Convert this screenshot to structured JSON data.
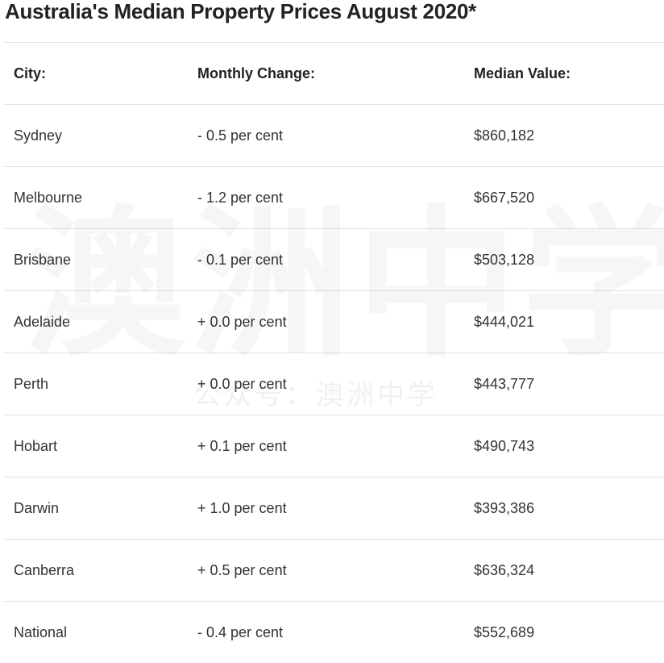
{
  "header": {
    "title": "Australia's Median Property Prices August 2020*"
  },
  "table": {
    "columns": [
      "City:",
      "Monthly Change:",
      "Median Value:"
    ],
    "rows": [
      [
        "Sydney",
        "- 0.5 per cent",
        "$860,182"
      ],
      [
        "Melbourne",
        "- 1.2 per cent",
        "$667,520"
      ],
      [
        "Brisbane",
        "- 0.1 per cent",
        "$503,128"
      ],
      [
        "Adelaide",
        "+ 0.0 per cent",
        "$444,021"
      ],
      [
        "Perth",
        "+ 0.0 per cent",
        "$443,777"
      ],
      [
        "Hobart",
        "+ 0.1 per cent",
        "$490,743"
      ],
      [
        "Darwin",
        "+ 1.0 per cent",
        "$393,386"
      ],
      [
        "Canberra",
        "+ 0.5 per cent",
        "$636,324"
      ],
      [
        "National",
        "- 0.4 per cent",
        "$552,689"
      ]
    ]
  },
  "watermark": {
    "main": "澳洲中学",
    "sub": "公众号：澳洲中学"
  }
}
